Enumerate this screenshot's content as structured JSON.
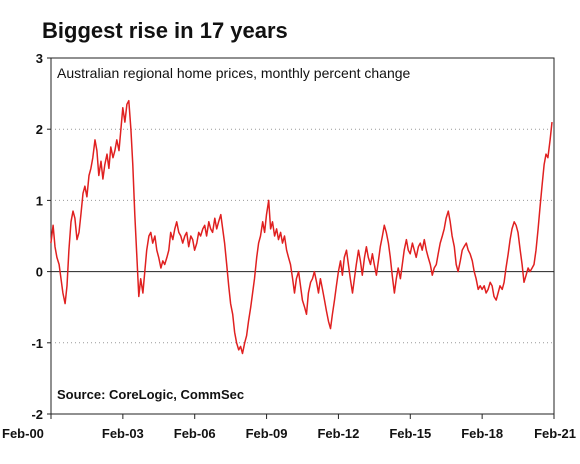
{
  "title": "Biggest rise in 17 years",
  "chart_data": {
    "type": "line",
    "subtitle": "Australian regional home prices, monthly percent change",
    "source": "Source: CoreLogic, CommSec",
    "xlabel": "",
    "ylabel": "",
    "ylim": [
      -2,
      3
    ],
    "y_ticks": [
      3,
      2,
      1,
      0,
      -1,
      -2
    ],
    "x_ticks": [
      "Feb-00",
      "Feb-03",
      "Feb-06",
      "Feb-09",
      "Feb-12",
      "Feb-15",
      "Feb-18",
      "Feb-21"
    ],
    "x_range_years": [
      2000.083,
      2021.083
    ],
    "grid": "horizontal dotted",
    "line_color": "#e02020",
    "series": [
      {
        "points": [
          [
            2000.08,
            0.4
          ],
          [
            2000.17,
            0.65
          ],
          [
            2000.25,
            0.35
          ],
          [
            2000.33,
            0.2
          ],
          [
            2000.42,
            0.1
          ],
          [
            2000.5,
            -0.1
          ],
          [
            2000.58,
            -0.3
          ],
          [
            2000.67,
            -0.45
          ],
          [
            2000.75,
            -0.2
          ],
          [
            2000.83,
            0.3
          ],
          [
            2000.92,
            0.7
          ],
          [
            2001.0,
            0.85
          ],
          [
            2001.08,
            0.75
          ],
          [
            2001.17,
            0.45
          ],
          [
            2001.25,
            0.55
          ],
          [
            2001.33,
            0.8
          ],
          [
            2001.42,
            1.1
          ],
          [
            2001.5,
            1.2
          ],
          [
            2001.58,
            1.05
          ],
          [
            2001.67,
            1.35
          ],
          [
            2001.75,
            1.45
          ],
          [
            2001.83,
            1.6
          ],
          [
            2001.92,
            1.85
          ],
          [
            2002.0,
            1.7
          ],
          [
            2002.08,
            1.35
          ],
          [
            2002.17,
            1.55
          ],
          [
            2002.25,
            1.3
          ],
          [
            2002.33,
            1.5
          ],
          [
            2002.42,
            1.65
          ],
          [
            2002.5,
            1.45
          ],
          [
            2002.58,
            1.75
          ],
          [
            2002.67,
            1.6
          ],
          [
            2002.75,
            1.7
          ],
          [
            2002.83,
            1.85
          ],
          [
            2002.92,
            1.7
          ],
          [
            2003.0,
            2.0
          ],
          [
            2003.08,
            2.3
          ],
          [
            2003.17,
            2.1
          ],
          [
            2003.25,
            2.35
          ],
          [
            2003.33,
            2.4
          ],
          [
            2003.42,
            2.0
          ],
          [
            2003.5,
            1.5
          ],
          [
            2003.58,
            0.8
          ],
          [
            2003.67,
            0.2
          ],
          [
            2003.75,
            -0.35
          ],
          [
            2003.83,
            -0.1
          ],
          [
            2003.92,
            -0.3
          ],
          [
            2004.0,
            0.0
          ],
          [
            2004.08,
            0.3
          ],
          [
            2004.17,
            0.5
          ],
          [
            2004.25,
            0.55
          ],
          [
            2004.33,
            0.4
          ],
          [
            2004.42,
            0.5
          ],
          [
            2004.5,
            0.3
          ],
          [
            2004.58,
            0.2
          ],
          [
            2004.67,
            0.05
          ],
          [
            2004.75,
            0.15
          ],
          [
            2004.83,
            0.1
          ],
          [
            2004.92,
            0.2
          ],
          [
            2005.0,
            0.3
          ],
          [
            2005.08,
            0.55
          ],
          [
            2005.17,
            0.45
          ],
          [
            2005.25,
            0.6
          ],
          [
            2005.33,
            0.7
          ],
          [
            2005.42,
            0.55
          ],
          [
            2005.5,
            0.5
          ],
          [
            2005.58,
            0.4
          ],
          [
            2005.67,
            0.5
          ],
          [
            2005.75,
            0.55
          ],
          [
            2005.83,
            0.35
          ],
          [
            2005.92,
            0.5
          ],
          [
            2006.0,
            0.45
          ],
          [
            2006.08,
            0.3
          ],
          [
            2006.17,
            0.4
          ],
          [
            2006.25,
            0.55
          ],
          [
            2006.33,
            0.5
          ],
          [
            2006.42,
            0.6
          ],
          [
            2006.5,
            0.65
          ],
          [
            2006.58,
            0.5
          ],
          [
            2006.67,
            0.7
          ],
          [
            2006.75,
            0.6
          ],
          [
            2006.83,
            0.55
          ],
          [
            2006.92,
            0.75
          ],
          [
            2007.0,
            0.6
          ],
          [
            2007.08,
            0.7
          ],
          [
            2007.17,
            0.8
          ],
          [
            2007.25,
            0.6
          ],
          [
            2007.33,
            0.4
          ],
          [
            2007.42,
            0.1
          ],
          [
            2007.5,
            -0.2
          ],
          [
            2007.58,
            -0.45
          ],
          [
            2007.67,
            -0.6
          ],
          [
            2007.75,
            -0.85
          ],
          [
            2007.83,
            -1.0
          ],
          [
            2007.92,
            -1.1
          ],
          [
            2008.0,
            -1.05
          ],
          [
            2008.08,
            -1.15
          ],
          [
            2008.17,
            -1.0
          ],
          [
            2008.25,
            -0.9
          ],
          [
            2008.33,
            -0.7
          ],
          [
            2008.42,
            -0.5
          ],
          [
            2008.5,
            -0.3
          ],
          [
            2008.58,
            -0.1
          ],
          [
            2008.67,
            0.2
          ],
          [
            2008.75,
            0.4
          ],
          [
            2008.83,
            0.5
          ],
          [
            2008.92,
            0.7
          ],
          [
            2009.0,
            0.55
          ],
          [
            2009.08,
            0.8
          ],
          [
            2009.17,
            1.0
          ],
          [
            2009.25,
            0.6
          ],
          [
            2009.33,
            0.7
          ],
          [
            2009.42,
            0.5
          ],
          [
            2009.5,
            0.6
          ],
          [
            2009.58,
            0.45
          ],
          [
            2009.67,
            0.55
          ],
          [
            2009.75,
            0.4
          ],
          [
            2009.83,
            0.5
          ],
          [
            2009.92,
            0.3
          ],
          [
            2010.0,
            0.2
          ],
          [
            2010.08,
            0.1
          ],
          [
            2010.17,
            -0.1
          ],
          [
            2010.25,
            -0.3
          ],
          [
            2010.33,
            -0.1
          ],
          [
            2010.42,
            0.0
          ],
          [
            2010.5,
            -0.2
          ],
          [
            2010.58,
            -0.4
          ],
          [
            2010.67,
            -0.5
          ],
          [
            2010.75,
            -0.6
          ],
          [
            2010.83,
            -0.3
          ],
          [
            2010.92,
            -0.15
          ],
          [
            2011.0,
            -0.1
          ],
          [
            2011.08,
            0.0
          ],
          [
            2011.17,
            -0.15
          ],
          [
            2011.25,
            -0.3
          ],
          [
            2011.33,
            -0.1
          ],
          [
            2011.42,
            -0.25
          ],
          [
            2011.5,
            -0.4
          ],
          [
            2011.58,
            -0.55
          ],
          [
            2011.67,
            -0.7
          ],
          [
            2011.75,
            -0.8
          ],
          [
            2011.83,
            -0.6
          ],
          [
            2011.92,
            -0.4
          ],
          [
            2012.0,
            -0.2
          ],
          [
            2012.08,
            0.0
          ],
          [
            2012.17,
            0.15
          ],
          [
            2012.25,
            -0.05
          ],
          [
            2012.33,
            0.2
          ],
          [
            2012.42,
            0.3
          ],
          [
            2012.5,
            0.1
          ],
          [
            2012.58,
            -0.1
          ],
          [
            2012.67,
            -0.3
          ],
          [
            2012.75,
            -0.1
          ],
          [
            2012.83,
            0.1
          ],
          [
            2012.92,
            0.3
          ],
          [
            2013.0,
            0.15
          ],
          [
            2013.08,
            -0.05
          ],
          [
            2013.17,
            0.2
          ],
          [
            2013.25,
            0.35
          ],
          [
            2013.33,
            0.2
          ],
          [
            2013.42,
            0.1
          ],
          [
            2013.5,
            0.25
          ],
          [
            2013.58,
            0.1
          ],
          [
            2013.67,
            -0.05
          ],
          [
            2013.75,
            0.15
          ],
          [
            2013.83,
            0.35
          ],
          [
            2013.92,
            0.5
          ],
          [
            2014.0,
            0.65
          ],
          [
            2014.08,
            0.55
          ],
          [
            2014.17,
            0.4
          ],
          [
            2014.25,
            0.2
          ],
          [
            2014.33,
            -0.05
          ],
          [
            2014.42,
            -0.3
          ],
          [
            2014.5,
            -0.1
          ],
          [
            2014.58,
            0.05
          ],
          [
            2014.67,
            -0.1
          ],
          [
            2014.75,
            0.1
          ],
          [
            2014.83,
            0.3
          ],
          [
            2014.92,
            0.45
          ],
          [
            2015.0,
            0.3
          ],
          [
            2015.08,
            0.25
          ],
          [
            2015.17,
            0.4
          ],
          [
            2015.25,
            0.3
          ],
          [
            2015.33,
            0.2
          ],
          [
            2015.42,
            0.35
          ],
          [
            2015.5,
            0.4
          ],
          [
            2015.58,
            0.3
          ],
          [
            2015.67,
            0.45
          ],
          [
            2015.75,
            0.3
          ],
          [
            2015.83,
            0.2
          ],
          [
            2015.92,
            0.1
          ],
          [
            2016.0,
            -0.05
          ],
          [
            2016.08,
            0.05
          ],
          [
            2016.17,
            0.1
          ],
          [
            2016.25,
            0.25
          ],
          [
            2016.33,
            0.4
          ],
          [
            2016.42,
            0.5
          ],
          [
            2016.5,
            0.6
          ],
          [
            2016.58,
            0.75
          ],
          [
            2016.67,
            0.85
          ],
          [
            2016.75,
            0.7
          ],
          [
            2016.83,
            0.5
          ],
          [
            2016.92,
            0.35
          ],
          [
            2017.0,
            0.1
          ],
          [
            2017.08,
            0.0
          ],
          [
            2017.17,
            0.15
          ],
          [
            2017.25,
            0.3
          ],
          [
            2017.33,
            0.35
          ],
          [
            2017.42,
            0.4
          ],
          [
            2017.5,
            0.3
          ],
          [
            2017.58,
            0.25
          ],
          [
            2017.67,
            0.15
          ],
          [
            2017.75,
            0.0
          ],
          [
            2017.83,
            -0.1
          ],
          [
            2017.92,
            -0.25
          ],
          [
            2018.0,
            -0.2
          ],
          [
            2018.08,
            -0.25
          ],
          [
            2018.17,
            -0.2
          ],
          [
            2018.25,
            -0.3
          ],
          [
            2018.33,
            -0.25
          ],
          [
            2018.42,
            -0.15
          ],
          [
            2018.5,
            -0.2
          ],
          [
            2018.58,
            -0.35
          ],
          [
            2018.67,
            -0.4
          ],
          [
            2018.75,
            -0.3
          ],
          [
            2018.83,
            -0.2
          ],
          [
            2018.92,
            -0.25
          ],
          [
            2019.0,
            -0.15
          ],
          [
            2019.08,
            0.05
          ],
          [
            2019.17,
            0.25
          ],
          [
            2019.25,
            0.45
          ],
          [
            2019.33,
            0.6
          ],
          [
            2019.42,
            0.7
          ],
          [
            2019.5,
            0.65
          ],
          [
            2019.58,
            0.55
          ],
          [
            2019.67,
            0.3
          ],
          [
            2019.75,
            0.1
          ],
          [
            2019.83,
            -0.15
          ],
          [
            2019.92,
            -0.05
          ],
          [
            2020.0,
            0.05
          ],
          [
            2020.08,
            0.0
          ],
          [
            2020.17,
            0.05
          ],
          [
            2020.25,
            0.1
          ],
          [
            2020.33,
            0.3
          ],
          [
            2020.42,
            0.6
          ],
          [
            2020.5,
            0.9
          ],
          [
            2020.58,
            1.2
          ],
          [
            2020.67,
            1.5
          ],
          [
            2020.75,
            1.65
          ],
          [
            2020.83,
            1.6
          ],
          [
            2020.92,
            1.85
          ],
          [
            2021.0,
            2.1
          ]
        ]
      }
    ]
  }
}
